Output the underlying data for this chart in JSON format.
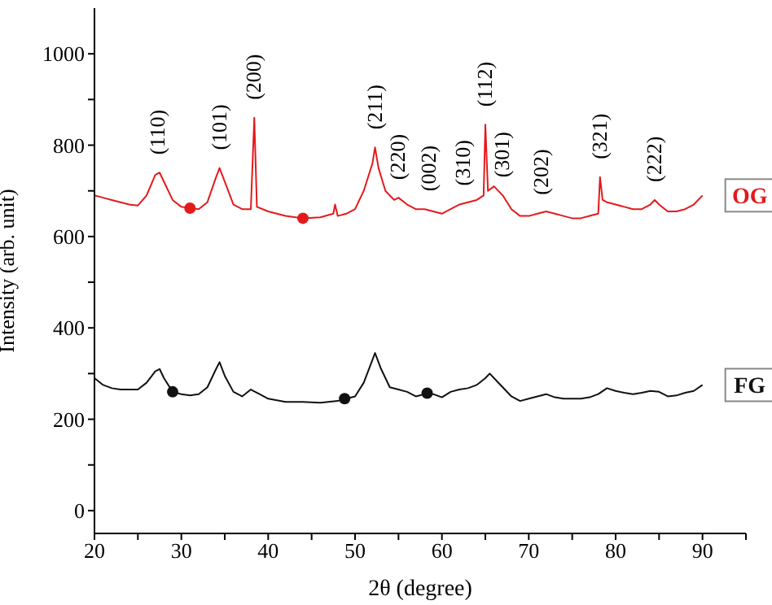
{
  "chart_data": {
    "type": "line",
    "xlabel": "2θ (degree)",
    "ylabel": "Intensity (arb. unit)",
    "xlim": [
      20,
      95
    ],
    "xticks": [
      20,
      {
        "value": 25,
        "label": null
      },
      30,
      {
        "value": 35,
        "label": null
      },
      40,
      {
        "value": 45,
        "label": null
      },
      50,
      {
        "value": 55,
        "label": null
      },
      60,
      {
        "value": 65,
        "label": null
      },
      70,
      {
        "value": 75,
        "label": null
      },
      80,
      {
        "value": 85,
        "label": null
      },
      90,
      {
        "value": 95,
        "label": null
      }
    ],
    "ylim": [
      -50,
      1100
    ],
    "yticks": [
      0,
      {
        "value": 100,
        "label": null
      },
      200,
      {
        "value": 300,
        "label": null
      },
      400,
      {
        "value": 500,
        "label": null
      },
      600,
      {
        "value": 700,
        "label": null
      },
      800,
      {
        "value": 900,
        "label": null
      },
      1000
    ],
    "grid": false,
    "legend": false,
    "marker": "none",
    "line_style": "solid",
    "series": [
      {
        "name": "OG",
        "color": "#e31a1c",
        "x": [
          20,
          21,
          22,
          23,
          24,
          25,
          26,
          27,
          27.5,
          28,
          29,
          30,
          31,
          32,
          33,
          34,
          34.4,
          35,
          36,
          37,
          38,
          38.4,
          38.7,
          40,
          42,
          44,
          46,
          47.5,
          47.7,
          48,
          49,
          50,
          51,
          52,
          52.3,
          52.7,
          53.5,
          54.5,
          55,
          56,
          57,
          58,
          59,
          60,
          61,
          62,
          63,
          64,
          64.8,
          65,
          65.3,
          66,
          67,
          68,
          69,
          70,
          71,
          72,
          73,
          74,
          75,
          76,
          77,
          78,
          78.2,
          78.5,
          79,
          80,
          81,
          82,
          83,
          84,
          84.5,
          85,
          86,
          87,
          88,
          89,
          90
        ],
        "values": [
          690,
          685,
          680,
          675,
          670,
          668,
          690,
          735,
          740,
          720,
          680,
          665,
          662,
          660,
          675,
          730,
          750,
          720,
          670,
          660,
          660,
          860,
          665,
          655,
          645,
          640,
          642,
          650,
          670,
          645,
          650,
          660,
          700,
          760,
          795,
          750,
          700,
          680,
          685,
          670,
          660,
          660,
          655,
          650,
          660,
          670,
          675,
          680,
          690,
          845,
          700,
          710,
          690,
          660,
          645,
          645,
          650,
          655,
          650,
          645,
          640,
          640,
          645,
          650,
          730,
          680,
          675,
          670,
          665,
          660,
          660,
          670,
          680,
          670,
          655,
          655,
          660,
          670,
          690
        ]
      },
      {
        "name": "FG",
        "color": "#111111",
        "x": [
          20,
          21,
          22,
          23,
          24,
          25,
          26,
          27,
          27.5,
          28,
          29,
          30,
          31,
          32,
          33,
          34,
          34.4,
          35,
          36,
          37,
          38,
          39,
          40,
          42,
          44,
          46,
          48,
          49,
          50,
          51,
          52,
          52.3,
          53,
          54,
          55,
          56,
          57,
          58,
          59,
          60,
          61,
          62,
          63,
          64,
          65,
          65.5,
          66,
          67,
          68,
          69,
          70,
          71,
          72,
          73,
          74,
          75,
          76,
          77,
          78,
          79,
          80,
          81,
          82,
          83,
          84,
          85,
          86,
          87,
          88,
          89,
          90
        ],
        "values": [
          290,
          275,
          268,
          265,
          265,
          265,
          280,
          305,
          310,
          290,
          260,
          255,
          252,
          255,
          270,
          310,
          325,
          295,
          260,
          250,
          265,
          255,
          245,
          238,
          238,
          236,
          240,
          245,
          250,
          280,
          330,
          345,
          310,
          270,
          265,
          260,
          250,
          255,
          255,
          248,
          260,
          265,
          268,
          275,
          290,
          300,
          290,
          270,
          250,
          240,
          245,
          250,
          255,
          248,
          245,
          245,
          245,
          248,
          255,
          268,
          262,
          258,
          255,
          258,
          262,
          260,
          250,
          252,
          258,
          262,
          275
        ]
      },
      {
        "type": "scatter",
        "color": "#e31a1c",
        "marker": "circle",
        "x": [
          31,
          44
        ],
        "values": [
          662,
          640
        ]
      },
      {
        "type": "scatter",
        "color": "#111111",
        "marker": "circle",
        "x": [
          29,
          48.8,
          58.3
        ],
        "values": [
          260,
          245,
          257
        ]
      }
    ],
    "annotations": [
      {
        "text": "(110)",
        "x": 27.3,
        "y": 740
      },
      {
        "text": "(101)",
        "x": 34.4,
        "y": 750
      },
      {
        "text": "(200)",
        "x": 38.4,
        "y": 860
      },
      {
        "text": "(211)",
        "x": 52.3,
        "y": 795
      },
      {
        "text": "(220)",
        "x": 55,
        "y": 685
      },
      {
        "text": "(002)",
        "x": 58.5,
        "y": 660
      },
      {
        "text": "(310)",
        "x": 62.5,
        "y": 672
      },
      {
        "text": "(112)",
        "x": 65,
        "y": 845
      },
      {
        "text": "(301)",
        "x": 67,
        "y": 690
      },
      {
        "text": "(202)",
        "x": 71.5,
        "y": 652
      },
      {
        "text": "(321)",
        "x": 78.2,
        "y": 730
      },
      {
        "text": "(222)",
        "x": 84.5,
        "y": 680
      }
    ]
  }
}
